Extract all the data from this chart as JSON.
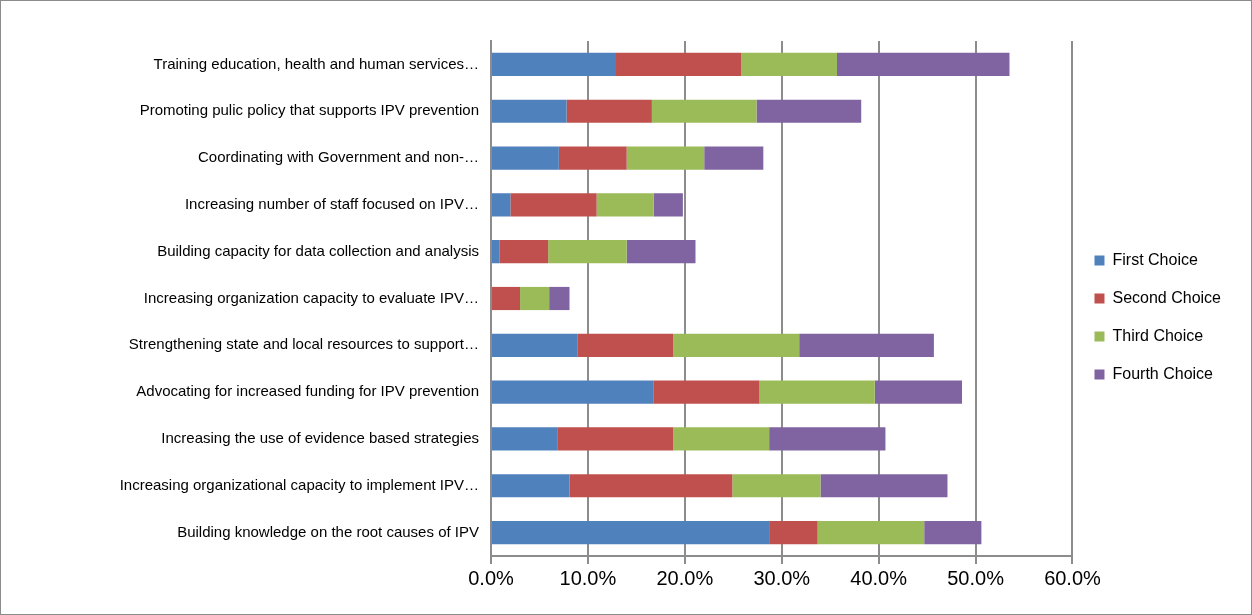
{
  "chart_data": {
    "type": "bar",
    "orientation": "horizontal",
    "stacked": true,
    "categories": [
      "Training education, health and human services…",
      "Promoting pulic policy that supports IPV prevention",
      "Coordinating with Government and non-…",
      "Increasing number of staff focused on IPV…",
      "Building capacity for data collection and analysis",
      "Increasing organization capacity to evaluate IPV…",
      "Strengthening state and local resources to support…",
      "Advocating for increased funding for IPV prevention",
      "Increasing the use of evidence based strategies",
      "Increasing organizational capacity to implement IPV…",
      "Building knowledge on the root causes of IPV"
    ],
    "series": [
      {
        "name": "First Choice",
        "color": "#4f81bd",
        "values": [
          12.9,
          7.8,
          7.0,
          2.0,
          0.9,
          0,
          8.9,
          16.8,
          6.9,
          8.1,
          28.7
        ]
      },
      {
        "name": "Second Choice",
        "color": "#c0504d",
        "values": [
          12.9,
          8.8,
          7.0,
          8.9,
          5.0,
          3.0,
          9.9,
          10.9,
          11.9,
          16.8,
          5.0
        ]
      },
      {
        "name": "Third Choice",
        "color": "#9bbb59",
        "values": [
          9.9,
          10.8,
          8.0,
          5.9,
          8.1,
          3.0,
          13.0,
          11.9,
          9.9,
          9.1,
          11.0
        ]
      },
      {
        "name": "Fourth Choice",
        "color": "#8064a2",
        "values": [
          17.8,
          10.8,
          6.1,
          3.0,
          7.1,
          2.1,
          13.9,
          9.0,
          12.0,
          13.1,
          5.9
        ]
      }
    ],
    "xlim": [
      0,
      60
    ],
    "xticks": [
      {
        "value": 0,
        "label": "0.0%"
      },
      {
        "value": 10,
        "label": "10.0%"
      },
      {
        "value": 20,
        "label": "20.0%"
      },
      {
        "value": 30,
        "label": "30.0%"
      },
      {
        "value": 40,
        "label": "40.0%"
      },
      {
        "value": 50,
        "label": "50.0%"
      },
      {
        "value": 60,
        "label": "60.0%"
      }
    ],
    "grid": "x",
    "legend": "right"
  }
}
